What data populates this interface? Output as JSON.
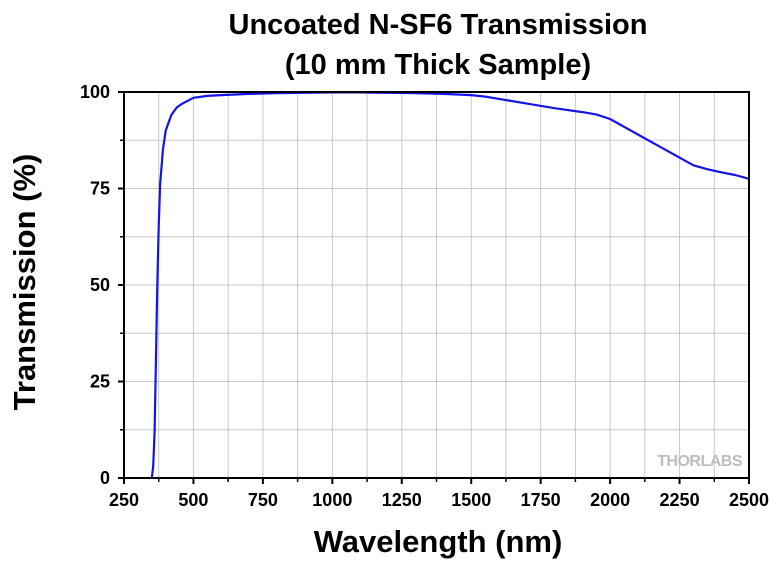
{
  "chart_data": {
    "type": "line",
    "title_line1": "Uncoated N-SF6 Transmission",
    "title_line2": "(10 mm Thick Sample)",
    "xlabel": "Wavelength (nm)",
    "ylabel": "Transmission (%)",
    "xlim": [
      250,
      2500
    ],
    "ylim": [
      0,
      100
    ],
    "x_ticks": [
      250,
      500,
      750,
      1000,
      1250,
      1500,
      1750,
      2000,
      2250,
      2500
    ],
    "y_ticks": [
      0,
      25,
      50,
      75,
      100
    ],
    "grid": true,
    "watermark": "THORLABS",
    "series": [
      {
        "color": "#1414e6",
        "x": [
          350,
          355,
          360,
          365,
          370,
          375,
          380,
          390,
          400,
          420,
          440,
          460,
          500,
          550,
          600,
          700,
          800,
          900,
          1000,
          1100,
          1200,
          1300,
          1400,
          1500,
          1550,
          1600,
          1700,
          1800,
          1900,
          1950,
          2000,
          2100,
          2200,
          2300,
          2350,
          2400,
          2450,
          2500
        ],
        "y": [
          0,
          3,
          12,
          30,
          50,
          65,
          76,
          85,
          90,
          94,
          96,
          97,
          98.5,
          99,
          99.2,
          99.5,
          99.7,
          99.8,
          99.9,
          99.9,
          99.8,
          99.7,
          99.5,
          99.2,
          98.8,
          98.2,
          97,
          95.8,
          94.8,
          94.2,
          93,
          89,
          85,
          81,
          80,
          79.2,
          78.5,
          77.5
        ]
      }
    ]
  }
}
